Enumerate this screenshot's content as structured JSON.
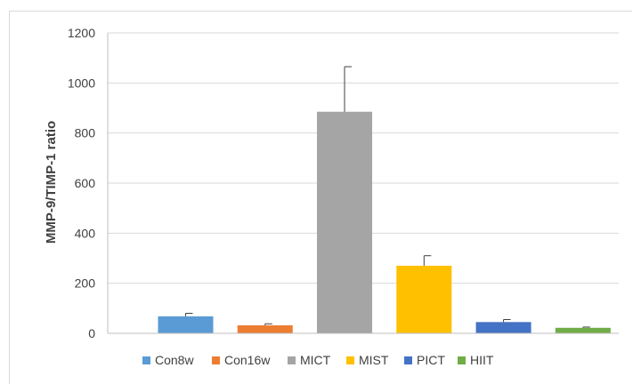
{
  "chart_data": {
    "type": "bar",
    "title": "",
    "xlabel": "",
    "ylabel": "MMP-9/TIMP-1 ratio",
    "ylim": [
      0,
      1200
    ],
    "yticks": [
      0,
      200,
      400,
      600,
      800,
      1000,
      1200
    ],
    "grid": true,
    "legend_position": "bottom",
    "categories": [
      "Con8w",
      "Con16w",
      "MICT",
      "MIST",
      "PICT",
      "HIIT"
    ],
    "series": [
      {
        "name": "Con8w",
        "value": 68,
        "error": 12,
        "color": "#5b9bd5"
      },
      {
        "name": "Con16w",
        "value": 32,
        "error": 6,
        "color": "#ed7d31"
      },
      {
        "name": "MICT",
        "value": 885,
        "error": 180,
        "color": "#a5a5a5"
      },
      {
        "name": "MIST",
        "value": 270,
        "error": 40,
        "color": "#ffc000"
      },
      {
        "name": "PICT",
        "value": 45,
        "error": 10,
        "color": "#4472c4"
      },
      {
        "name": "HIIT",
        "value": 22,
        "error": 3,
        "color": "#70ad47"
      }
    ]
  }
}
